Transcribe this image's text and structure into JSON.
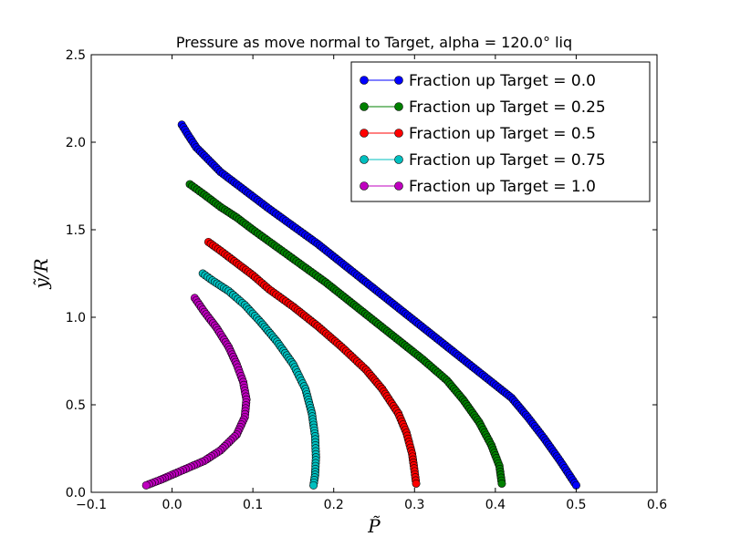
{
  "chart_data": {
    "type": "line",
    "title": "Pressure as move normal to Target, alpha = 120.0° liq",
    "xlabel": "P̃",
    "ylabel": "ỹ/R",
    "xlim": [
      -0.1,
      0.6
    ],
    "ylim": [
      0.0,
      2.5
    ],
    "xticks": [
      "−0.1",
      "0.0",
      "0.1",
      "0.2",
      "0.3",
      "0.4",
      "0.5",
      "0.6"
    ],
    "yticks": [
      "0.0",
      "0.5",
      "1.0",
      "1.5",
      "2.0",
      "2.5"
    ],
    "grid": false,
    "legend_position": "top-right",
    "series": [
      {
        "name": "Fraction up Target = 0.0",
        "color": "#0000ff",
        "x": [
          0.012,
          0.02,
          0.03,
          0.045,
          0.06,
          0.08,
          0.1,
          0.12,
          0.15,
          0.18,
          0.21,
          0.24,
          0.27,
          0.3,
          0.33,
          0.36,
          0.39,
          0.42,
          0.44,
          0.46,
          0.48,
          0.5
        ],
        "y": [
          2.1,
          2.04,
          1.97,
          1.9,
          1.83,
          1.76,
          1.69,
          1.62,
          1.52,
          1.42,
          1.31,
          1.2,
          1.09,
          0.98,
          0.87,
          0.76,
          0.65,
          0.54,
          0.43,
          0.31,
          0.18,
          0.04
        ]
      },
      {
        "name": "Fraction up Target = 0.25",
        "color": "#008000",
        "x": [
          0.022,
          0.04,
          0.06,
          0.08,
          0.1,
          0.13,
          0.16,
          0.19,
          0.22,
          0.25,
          0.28,
          0.31,
          0.34,
          0.36,
          0.38,
          0.395,
          0.405,
          0.408
        ],
        "y": [
          1.76,
          1.7,
          1.63,
          1.57,
          1.5,
          1.4,
          1.3,
          1.2,
          1.09,
          0.98,
          0.87,
          0.76,
          0.64,
          0.53,
          0.4,
          0.27,
          0.15,
          0.05
        ]
      },
      {
        "name": "Fraction up Target = 0.5",
        "color": "#ff0000",
        "x": [
          0.045,
          0.06,
          0.08,
          0.1,
          0.12,
          0.15,
          0.18,
          0.21,
          0.24,
          0.26,
          0.28,
          0.29,
          0.297,
          0.3,
          0.302
        ],
        "y": [
          1.43,
          1.38,
          1.31,
          1.24,
          1.16,
          1.06,
          0.95,
          0.83,
          0.7,
          0.59,
          0.45,
          0.34,
          0.22,
          0.12,
          0.05
        ]
      },
      {
        "name": "Fraction up Target = 0.75",
        "color": "#00bfbf",
        "x": [
          0.038,
          0.05,
          0.07,
          0.09,
          0.11,
          0.13,
          0.15,
          0.165,
          0.173,
          0.177,
          0.178,
          0.177,
          0.175
        ],
        "y": [
          1.25,
          1.21,
          1.15,
          1.07,
          0.97,
          0.86,
          0.73,
          0.59,
          0.45,
          0.32,
          0.2,
          0.1,
          0.04
        ]
      },
      {
        "name": "Fraction up Target = 1.0",
        "color": "#bf00bf",
        "x": [
          0.028,
          0.04,
          0.055,
          0.07,
          0.08,
          0.088,
          0.092,
          0.09,
          0.08,
          0.06,
          0.04,
          0.02,
          0.0,
          -0.015,
          -0.032
        ],
        "y": [
          1.11,
          1.03,
          0.94,
          0.83,
          0.73,
          0.63,
          0.53,
          0.43,
          0.33,
          0.24,
          0.18,
          0.14,
          0.1,
          0.07,
          0.04
        ]
      }
    ]
  }
}
